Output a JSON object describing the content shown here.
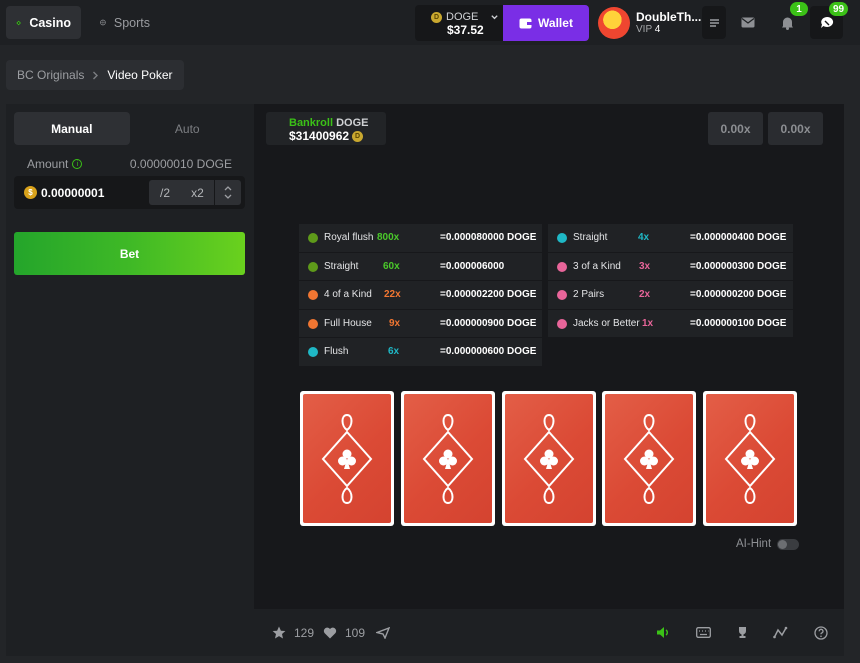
{
  "header": {
    "nav": {
      "casino": "Casino",
      "sports": "Sports"
    },
    "currency": {
      "code": "DOGE",
      "balance": "$37.52"
    },
    "wallet_label": "Wallet",
    "user": {
      "name": "DoubleTh...",
      "vip_label": "VIP",
      "vip_level": "4"
    },
    "notifications_count": "1",
    "chat_count": "99"
  },
  "breadcrumb": {
    "parent": "BC Originals",
    "current": "Video Poker"
  },
  "bet_panel": {
    "tabs": [
      "Manual",
      "Auto"
    ],
    "amount_label": "Amount",
    "amount_value": "0.00000010 DOGE",
    "input_value": "0.00000001",
    "half_label": "/2",
    "double_label": "x2",
    "bet_label": "Bet"
  },
  "game": {
    "bankroll_label": "Bankroll",
    "bankroll_currency": "DOGE",
    "bankroll_value": "$31400962",
    "multipliers": [
      "0.00x",
      "0.00x"
    ],
    "paytable_left": [
      {
        "name": "Royal flush",
        "mult": "800x",
        "payout": "=0.000080000 DOGE",
        "dot": "#5e9a1a",
        "color": "#4ac92a"
      },
      {
        "name": "Straight",
        "mult": "60x",
        "payout": "=0.000006000",
        "dot": "#5e9a1a",
        "color": "#4ac92a"
      },
      {
        "name": "4 of a Kind",
        "mult": "22x",
        "payout": "=0.000002200 DOGE",
        "dot": "#f07632",
        "color": "#f07632"
      },
      {
        "name": "Full House",
        "mult": "9x",
        "payout": "=0.000000900 DOGE",
        "dot": "#f07632",
        "color": "#f07632"
      },
      {
        "name": "Flush",
        "mult": "6x",
        "payout": "=0.000000600 DOGE",
        "dot": "#1fb8c6",
        "color": "#1fb8c6"
      }
    ],
    "paytable_right": [
      {
        "name": "Straight",
        "mult": "4x",
        "payout": "=0.000000400 DOGE",
        "dot": "#1fb8c6",
        "color": "#1fb8c6"
      },
      {
        "name": "3 of a Kind",
        "mult": "3x",
        "payout": "=0.000000300 DOGE",
        "dot": "#e8659a",
        "color": "#e8659a"
      },
      {
        "name": "2 Pairs",
        "mult": "2x",
        "payout": "=0.000000200 DOGE",
        "dot": "#e8659a",
        "color": "#e8659a"
      },
      {
        "name": "Jacks or Better",
        "mult": "1x",
        "payout": "=0.000000100 DOGE",
        "dot": "#e8659a",
        "color": "#e8659a"
      }
    ],
    "cards_count": 5,
    "ai_hint_label": "AI-Hint"
  },
  "footer": {
    "favorites": "129",
    "likes": "109"
  }
}
